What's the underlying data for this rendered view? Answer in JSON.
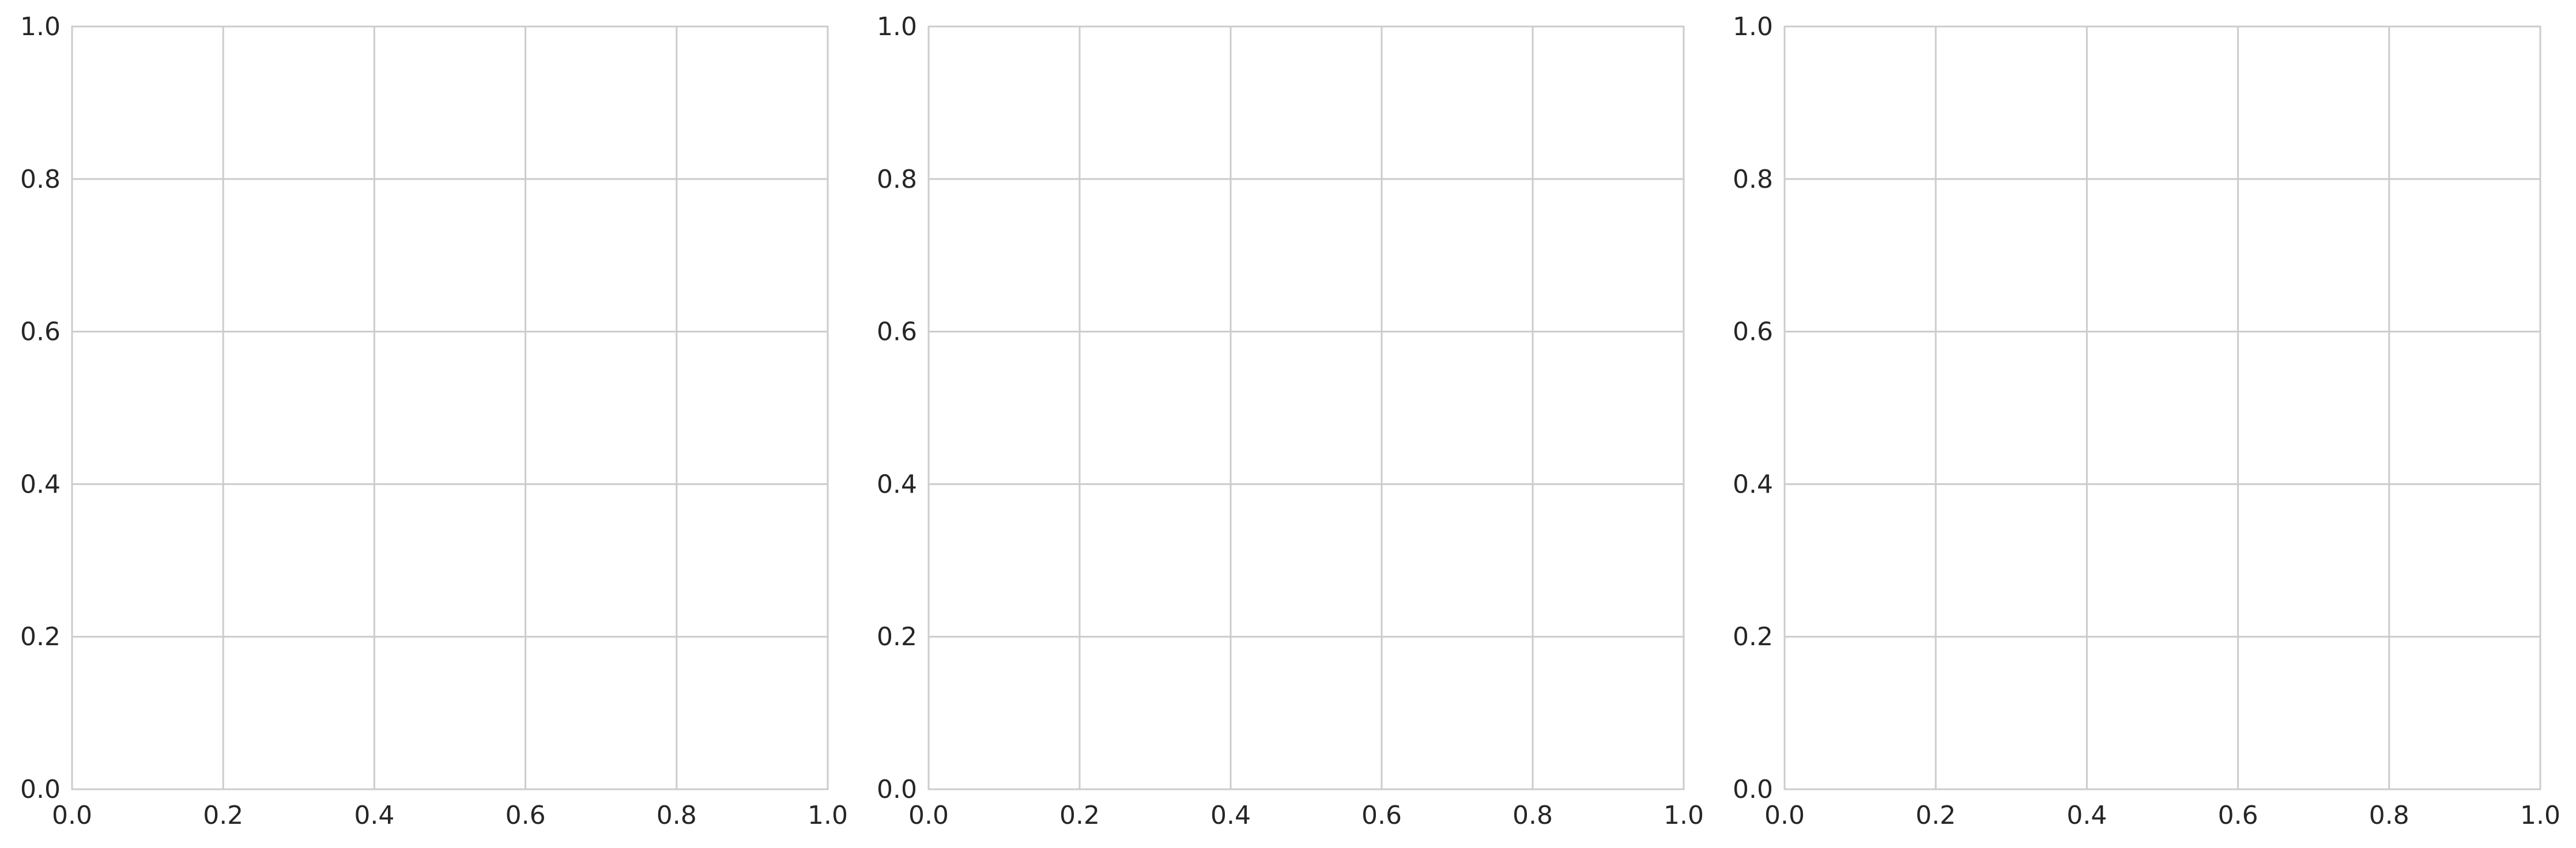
{
  "chart_data": [
    {
      "type": "scatter",
      "title": "",
      "xlabel": "",
      "ylabel": "",
      "xlim": [
        0,
        1
      ],
      "ylim": [
        0,
        1
      ],
      "x_ticks": [
        "0.0",
        "0.2",
        "0.4",
        "0.6",
        "0.8",
        "1.0"
      ],
      "y_ticks": [
        "0.0",
        "0.2",
        "0.4",
        "0.6",
        "0.8",
        "1.0"
      ],
      "grid": true,
      "series": []
    },
    {
      "type": "scatter",
      "title": "",
      "xlabel": "",
      "ylabel": "",
      "xlim": [
        0,
        1
      ],
      "ylim": [
        0,
        1
      ],
      "x_ticks": [
        "0.0",
        "0.2",
        "0.4",
        "0.6",
        "0.8",
        "1.0"
      ],
      "y_ticks": [
        "0.0",
        "0.2",
        "0.4",
        "0.6",
        "0.8",
        "1.0"
      ],
      "grid": true,
      "series": []
    },
    {
      "type": "scatter",
      "title": "",
      "xlabel": "",
      "ylabel": "",
      "xlim": [
        0,
        1
      ],
      "ylim": [
        0,
        1
      ],
      "x_ticks": [
        "0.0",
        "0.2",
        "0.4",
        "0.6",
        "0.8",
        "1.0"
      ],
      "y_ticks": [
        "0.0",
        "0.2",
        "0.4",
        "0.6",
        "0.8",
        "1.0"
      ],
      "grid": true,
      "series": []
    }
  ],
  "colors": {
    "grid": "#cccccc",
    "frame": "#cccccc",
    "text": "#262626",
    "background": "#ffffff"
  }
}
